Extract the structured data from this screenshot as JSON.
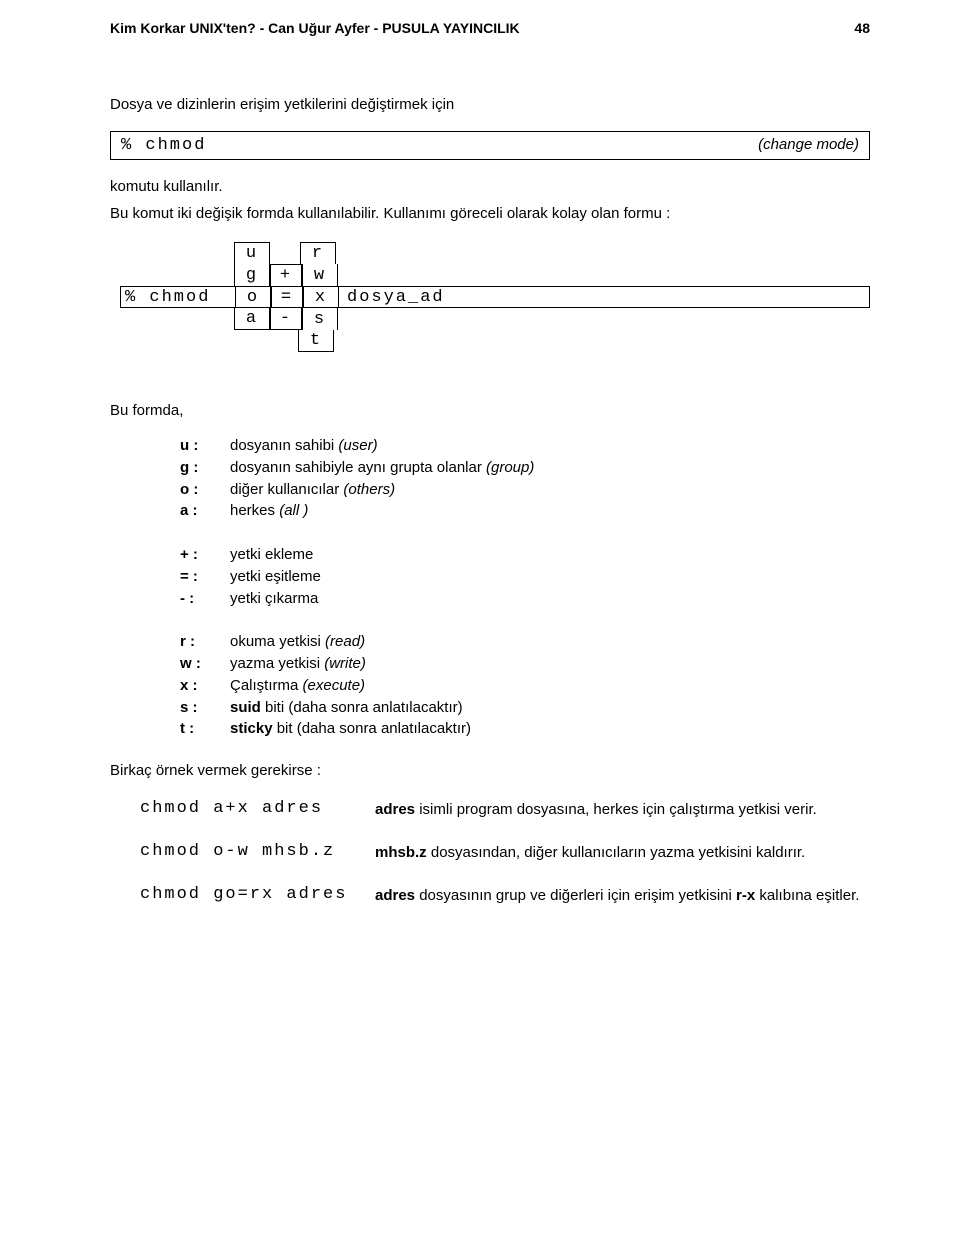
{
  "header": {
    "left": "Kim Korkar UNIX'ten?  -  Can Uğur Ayfer  -  PUSULA YAYINCILIK",
    "page_no": "48"
  },
  "intro": "Dosya ve dizinlerin erişim yetkilerini değiştirmek için",
  "cmdbox": {
    "left": "% chmod",
    "right": "(change mode)"
  },
  "after_cmd": "komutu kullanılır.",
  "para2": "Bu komut iki değişik formda kullanılabilir. Kullanımı göreceli olarak kolay olan formu :",
  "syntax": {
    "cmd": "% chmod",
    "who": [
      "u",
      "g",
      "o",
      "a"
    ],
    "op": [
      "",
      "+",
      "=",
      "-"
    ],
    "perm": [
      "r",
      "w",
      "x",
      "s",
      "t"
    ],
    "file": "dosya_ad"
  },
  "buformda": "Bu formda,",
  "defs1": [
    {
      "k": "u :",
      "v": "dosyanın sahibi ",
      "i": "(user)"
    },
    {
      "k": "g :",
      "v": "dosyanın sahibiyle aynı grupta olanlar ",
      "i": "(group)"
    },
    {
      "k": "o :",
      "v": "diğer kullanıcılar ",
      "i": "(others)"
    },
    {
      "k": "a :",
      "v": "herkes ",
      "i": "(all )"
    }
  ],
  "defs2": [
    {
      "k": "+ :",
      "v": "yetki ekleme"
    },
    {
      "k": "= :",
      "v": "yetki eşitleme"
    },
    {
      "k": "- :",
      "v": "yetki çıkarma"
    }
  ],
  "defs3": [
    {
      "k": "r :",
      "v": "okuma yetkisi ",
      "i": "(read)"
    },
    {
      "k": "w :",
      "v": "yazma yetkisi ",
      "i": "(write)"
    },
    {
      "k": "x :",
      "v": "Çalıştırma ",
      "i": "(execute)"
    },
    {
      "k": "s :",
      "b": "suid",
      "v": " biti (daha sonra anlatılacaktır)"
    },
    {
      "k": "t :",
      "b": "sticky",
      "v": " bit (daha sonra anlatılacaktır)"
    }
  ],
  "examples_intro": "Birkaç örnek vermek gerekirse :",
  "examples": [
    {
      "cmd": "chmod a+x adres",
      "b1": "adres",
      "t1": " isimli program dosyasına, herkes için çalıştırma yetkisi verir."
    },
    {
      "cmd": "chmod o-w mhsb.z",
      "b1": "mhsb.z",
      "t1": " dosyasından, diğer kullanıcıların yazma yetkisini kaldırır."
    },
    {
      "cmd": "chmod go=rx adres",
      "b1": "adres",
      "t1": " dosyasının grup ve diğerleri için erişim yetkisini ",
      "b2": "r-x",
      "t2": " kalıbına eşitler."
    }
  ]
}
